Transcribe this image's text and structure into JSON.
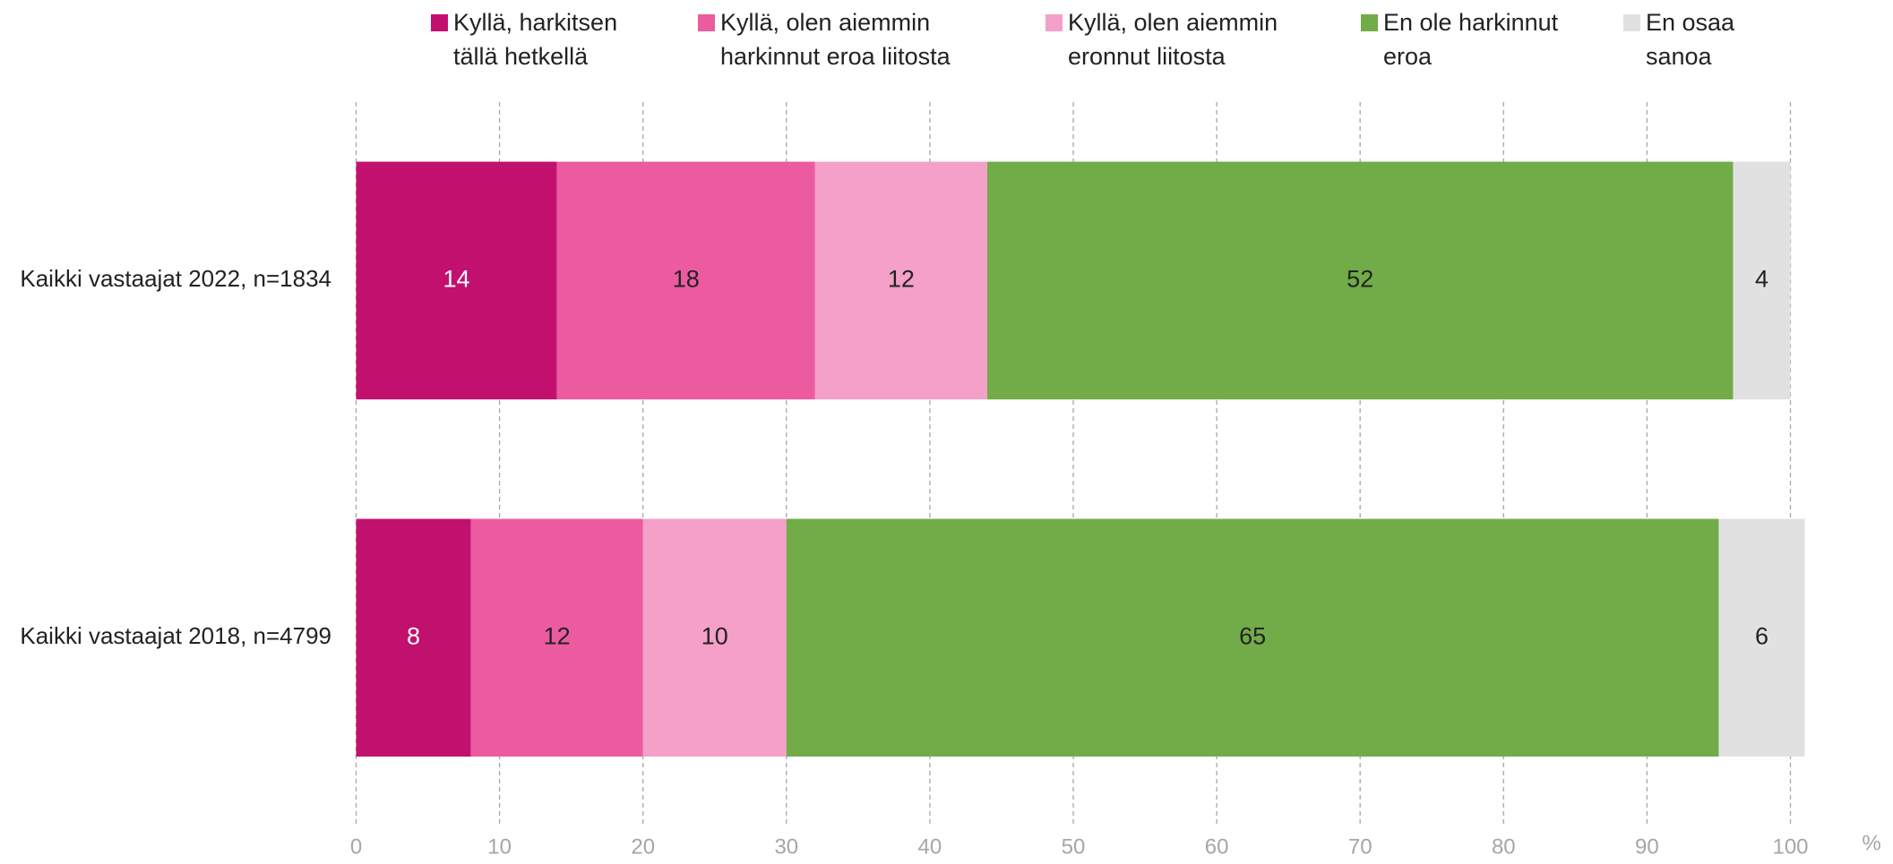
{
  "chart_data": {
    "type": "stacked-barh",
    "categories": [
      "Kaikki vastaajat 2022, n=1834",
      "Kaikki vastaajat 2018, n=4799"
    ],
    "series": [
      {
        "name": "Kyllä, harkitsen tällä hetkellä",
        "color": "#c2106e",
        "label_color": "#ffffff",
        "values": [
          14,
          8
        ]
      },
      {
        "name": "Kyllä, olen aiemmin harkinnut eroa liitosta",
        "color": "#ec5b9f",
        "label_color": "#222222",
        "values": [
          18,
          12
        ]
      },
      {
        "name": "Kyllä, olen aiemmin eronnut liitosta",
        "color": "#f4a0c8",
        "label_color": "#222222",
        "values": [
          12,
          10
        ]
      },
      {
        "name": "En ole harkinnut eroa",
        "color": "#71ac48",
        "label_color": "#222222",
        "values": [
          52,
          65
        ]
      },
      {
        "name": "En osaa sanoa",
        "color": "#e1e1e1",
        "label_color": "#222222",
        "values": [
          4,
          6
        ]
      }
    ],
    "xlim": [
      0,
      100
    ],
    "xticks": [
      0,
      10,
      20,
      30,
      40,
      50,
      60,
      70,
      80,
      90,
      100
    ],
    "xlabel": "%",
    "grid": true,
    "legend": "top"
  }
}
